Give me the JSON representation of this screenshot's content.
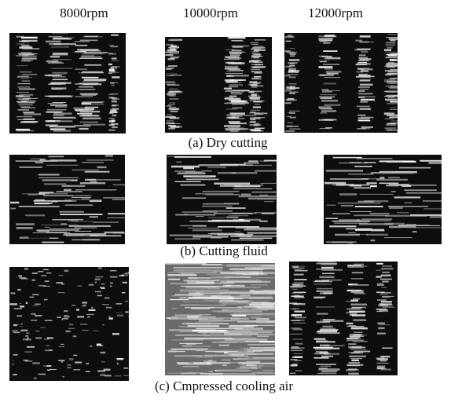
{
  "header": {
    "columns": [
      "8000rpm",
      "10000rpm",
      "12000rpm"
    ]
  },
  "rows": [
    {
      "caption": "(a) Dry cutting"
    },
    {
      "caption": "(b) Cutting fluid"
    },
    {
      "caption": "(c) Cmpressed cooling air"
    }
  ]
}
